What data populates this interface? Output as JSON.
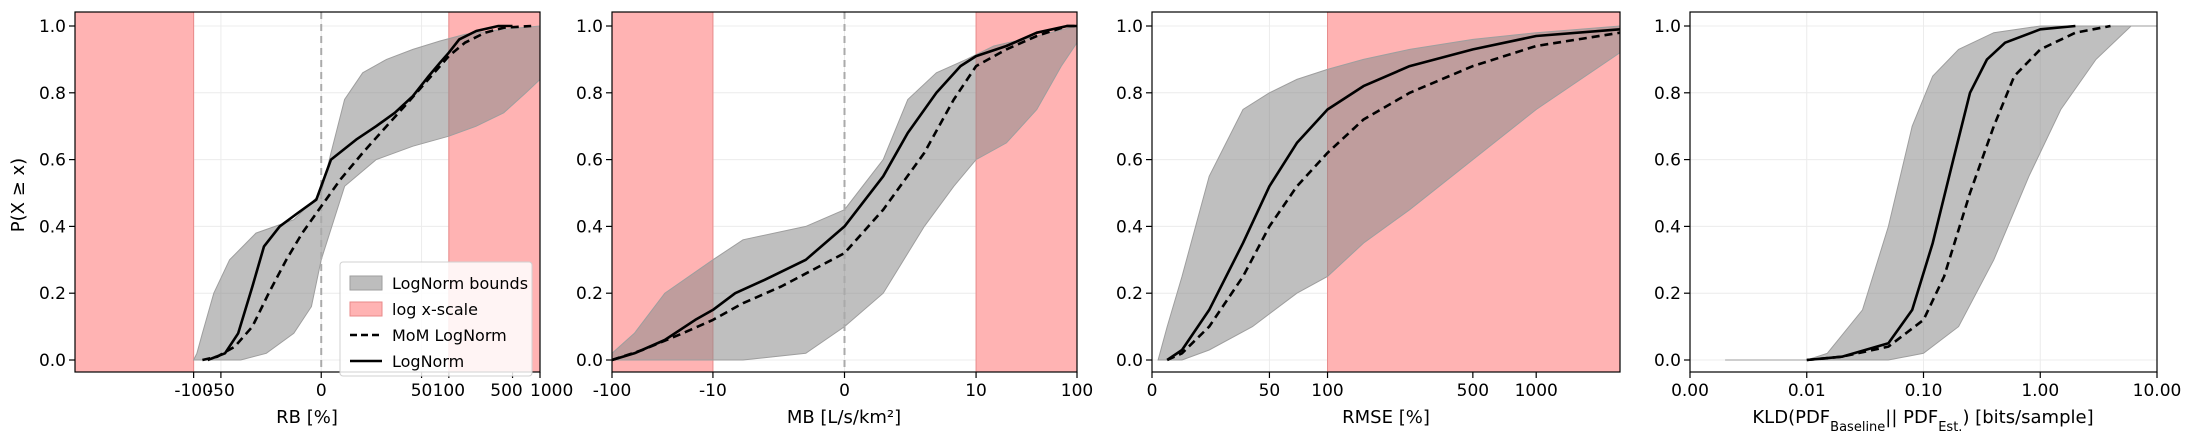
{
  "colors": {
    "bounds_fill": "#bdbdbd",
    "bounds_edge": "#9e9e9e",
    "log_fill": "#ffb3b3",
    "log_edge": "#e88a8a",
    "line": "#000000",
    "zero_line": "#aaaaaa",
    "grid": "#ececec"
  },
  "legend": {
    "bounds": "LogNorm bounds",
    "log": "log x-scale",
    "mom": "MoM LogNorm",
    "lognorm": "LogNorm"
  },
  "chart_data": [
    {
      "type": "area",
      "ylabel": "P(X ≥ x)",
      "xlabel": "RB [%]",
      "x_ticks": [
        "-100",
        "-50",
        "0",
        "50",
        "100",
        "500",
        "1000"
      ],
      "y_ticks": [
        "0.0",
        "0.2",
        "0.4",
        "0.6",
        "0.8",
        "1.0"
      ],
      "ylim": [
        0,
        1
      ],
      "log_regions": [
        [
          "left_edge",
          "-100"
        ],
        [
          "100",
          "right_edge"
        ]
      ],
      "zero_line": "0",
      "grid": true,
      "legend_position": "lower-right",
      "series": [
        {
          "role": "lognorm",
          "points": [
            [
              -70,
              0.0
            ],
            [
              -45,
              0.02
            ],
            [
              -32,
              0.08
            ],
            [
              -22,
              0.22
            ],
            [
              -16,
              0.34
            ],
            [
              -10,
              0.4
            ],
            [
              -5,
              0.44
            ],
            [
              -1,
              0.48
            ],
            [
              0,
              0.52
            ],
            [
              2,
              0.6
            ],
            [
              8,
              0.66
            ],
            [
              15,
              0.7
            ],
            [
              25,
              0.74
            ],
            [
              40,
              0.79
            ],
            [
              60,
              0.85
            ],
            [
              80,
              0.89
            ],
            [
              100,
              0.92
            ],
            [
              130,
              0.96
            ],
            [
              200,
              0.985
            ],
            [
              350,
              1.0
            ],
            [
              500,
              1.0
            ]
          ]
        },
        {
          "role": "mom",
          "points": [
            [
              -80,
              0.0
            ],
            [
              -55,
              0.01
            ],
            [
              -35,
              0.04
            ],
            [
              -22,
              0.1
            ],
            [
              -14,
              0.2
            ],
            [
              -8,
              0.3
            ],
            [
              -4,
              0.38
            ],
            [
              0,
              0.46
            ],
            [
              4,
              0.54
            ],
            [
              10,
              0.62
            ],
            [
              20,
              0.7
            ],
            [
              35,
              0.77
            ],
            [
              55,
              0.83
            ],
            [
              80,
              0.88
            ],
            [
              100,
              0.91
            ],
            [
              150,
              0.95
            ],
            [
              250,
              0.98
            ],
            [
              400,
              0.995
            ],
            [
              800,
              1.0
            ]
          ]
        },
        {
          "role": "bound_upper",
          "points": [
            [
              -100,
              0.0
            ],
            [
              -92,
              0.02
            ],
            [
              -80,
              0.08
            ],
            [
              -60,
              0.2
            ],
            [
              -40,
              0.3
            ],
            [
              -20,
              0.38
            ],
            [
              -6,
              0.42
            ],
            [
              0,
              0.5
            ],
            [
              2,
              0.62
            ],
            [
              5,
              0.78
            ],
            [
              10,
              0.86
            ],
            [
              20,
              0.9
            ],
            [
              40,
              0.93
            ],
            [
              80,
              0.955
            ],
            [
              150,
              0.975
            ],
            [
              400,
              0.99
            ],
            [
              1000,
              1.0
            ]
          ]
        },
        {
          "role": "bound_lower",
          "points": [
            [
              -100,
              0.0
            ],
            [
              -30,
              0.0
            ],
            [
              -15,
              0.02
            ],
            [
              -6,
              0.08
            ],
            [
              -2,
              0.16
            ],
            [
              0,
              0.3
            ],
            [
              5,
              0.52
            ],
            [
              15,
              0.6
            ],
            [
              40,
              0.64
            ],
            [
              100,
              0.67
            ],
            [
              200,
              0.7
            ],
            [
              400,
              0.74
            ],
            [
              700,
              0.8
            ],
            [
              1000,
              0.84
            ]
          ]
        }
      ]
    },
    {
      "type": "area",
      "xlabel": "MB [L/s/km²]",
      "x_ticks": [
        "-100",
        "-10",
        "0",
        "10",
        "100"
      ],
      "y_ticks": [
        "0.0",
        "0.2",
        "0.4",
        "0.6",
        "0.8",
        "1.0"
      ],
      "ylim": [
        0,
        1
      ],
      "log_regions": [
        [
          "-100",
          "-10"
        ],
        [
          "10",
          "100"
        ]
      ],
      "zero_line": "0",
      "grid": true,
      "series": [
        {
          "role": "lognorm",
          "points": [
            [
              -100,
              0.0
            ],
            [
              -60,
              0.02
            ],
            [
              -30,
              0.06
            ],
            [
              -15,
              0.12
            ],
            [
              -10,
              0.15
            ],
            [
              -6,
              0.2
            ],
            [
              -3,
              0.24
            ],
            [
              -1,
              0.3
            ],
            [
              0,
              0.4
            ],
            [
              1,
              0.55
            ],
            [
              2,
              0.68
            ],
            [
              4,
              0.8
            ],
            [
              7,
              0.88
            ],
            [
              10,
              0.91
            ],
            [
              20,
              0.94
            ],
            [
              40,
              0.98
            ],
            [
              80,
              1.0
            ],
            [
              100,
              1.0
            ]
          ]
        },
        {
          "role": "mom",
          "points": [
            [
              -100,
              0.0
            ],
            [
              -50,
              0.03
            ],
            [
              -20,
              0.08
            ],
            [
              -10,
              0.12
            ],
            [
              -5,
              0.17
            ],
            [
              -2,
              0.22
            ],
            [
              0,
              0.32
            ],
            [
              1,
              0.45
            ],
            [
              3,
              0.62
            ],
            [
              6,
              0.78
            ],
            [
              10,
              0.88
            ],
            [
              20,
              0.93
            ],
            [
              40,
              0.97
            ],
            [
              80,
              1.0
            ],
            [
              100,
              1.0
            ]
          ]
        },
        {
          "role": "bound_upper",
          "points": [
            [
              -100,
              0.02
            ],
            [
              -60,
              0.08
            ],
            [
              -30,
              0.2
            ],
            [
              -10,
              0.3
            ],
            [
              -5,
              0.36
            ],
            [
              -1,
              0.4
            ],
            [
              0,
              0.45
            ],
            [
              1,
              0.6
            ],
            [
              2,
              0.78
            ],
            [
              4,
              0.86
            ],
            [
              8,
              0.9
            ],
            [
              15,
              0.94
            ],
            [
              40,
              0.97
            ],
            [
              100,
              1.0
            ]
          ]
        },
        {
          "role": "bound_lower",
          "points": [
            [
              -100,
              0.0
            ],
            [
              -5,
              0.0
            ],
            [
              -1,
              0.02
            ],
            [
              0,
              0.1
            ],
            [
              1,
              0.2
            ],
            [
              3,
              0.4
            ],
            [
              6,
              0.52
            ],
            [
              10,
              0.6
            ],
            [
              20,
              0.65
            ],
            [
              40,
              0.75
            ],
            [
              70,
              0.88
            ],
            [
              100,
              0.95
            ]
          ]
        }
      ]
    },
    {
      "type": "area",
      "xlabel": "RMSE [%]",
      "x_ticks": [
        "0",
        "50",
        "100",
        "500",
        "1000"
      ],
      "y_ticks": [
        "0.0",
        "0.2",
        "0.4",
        "0.6",
        "0.8",
        "1.0"
      ],
      "ylim": [
        0,
        1
      ],
      "log_regions": [
        [
          "100",
          "right_edge"
        ]
      ],
      "grid": true,
      "series": [
        {
          "role": "lognorm",
          "points": [
            [
              5,
              0.0
            ],
            [
              10,
              0.03
            ],
            [
              20,
              0.15
            ],
            [
              35,
              0.35
            ],
            [
              50,
              0.52
            ],
            [
              70,
              0.65
            ],
            [
              100,
              0.75
            ],
            [
              150,
              0.82
            ],
            [
              250,
              0.88
            ],
            [
              500,
              0.93
            ],
            [
              1000,
              0.97
            ],
            [
              2500,
              0.99
            ]
          ]
        },
        {
          "role": "mom",
          "points": [
            [
              5,
              0.0
            ],
            [
              10,
              0.02
            ],
            [
              20,
              0.1
            ],
            [
              35,
              0.25
            ],
            [
              50,
              0.4
            ],
            [
              70,
              0.52
            ],
            [
              100,
              0.62
            ],
            [
              150,
              0.72
            ],
            [
              250,
              0.8
            ],
            [
              500,
              0.88
            ],
            [
              1000,
              0.94
            ],
            [
              2500,
              0.98
            ]
          ]
        },
        {
          "role": "bound_upper",
          "points": [
            [
              2,
              0.0
            ],
            [
              5,
              0.1
            ],
            [
              10,
              0.25
            ],
            [
              20,
              0.55
            ],
            [
              35,
              0.75
            ],
            [
              50,
              0.8
            ],
            [
              70,
              0.84
            ],
            [
              100,
              0.87
            ],
            [
              150,
              0.9
            ],
            [
              250,
              0.93
            ],
            [
              500,
              0.96
            ],
            [
              1000,
              0.98
            ],
            [
              2500,
              1.0
            ]
          ]
        },
        {
          "role": "bound_lower",
          "points": [
            [
              5,
              0.0
            ],
            [
              10,
              0.0
            ],
            [
              20,
              0.03
            ],
            [
              40,
              0.1
            ],
            [
              70,
              0.2
            ],
            [
              100,
              0.25
            ],
            [
              150,
              0.35
            ],
            [
              250,
              0.45
            ],
            [
              500,
              0.6
            ],
            [
              1000,
              0.75
            ],
            [
              2500,
              0.92
            ]
          ]
        }
      ]
    },
    {
      "type": "area",
      "xlabel": "KLD(PDF",
      "xlabel_sub1": "Baseline",
      "xlabel_mid": "|| PDF",
      "xlabel_sub2": "Est.",
      "xlabel_end": ") [bits/sample]",
      "x_ticks": [
        "0.00",
        "0.01",
        "0.10",
        "1.00",
        "10.00"
      ],
      "y_ticks": [
        "0.0",
        "0.2",
        "0.4",
        "0.6",
        "0.8",
        "1.0"
      ],
      "ylim": [
        0,
        1
      ],
      "grid": true,
      "series": [
        {
          "role": "lognorm",
          "points": [
            [
              0.01,
              0.0
            ],
            [
              0.02,
              0.01
            ],
            [
              0.05,
              0.05
            ],
            [
              0.08,
              0.15
            ],
            [
              0.12,
              0.35
            ],
            [
              0.18,
              0.6
            ],
            [
              0.25,
              0.8
            ],
            [
              0.35,
              0.9
            ],
            [
              0.5,
              0.95
            ],
            [
              1.0,
              0.99
            ],
            [
              2.0,
              1.0
            ]
          ]
        },
        {
          "role": "mom",
          "points": [
            [
              0.01,
              0.0
            ],
            [
              0.02,
              0.01
            ],
            [
              0.05,
              0.04
            ],
            [
              0.1,
              0.12
            ],
            [
              0.15,
              0.25
            ],
            [
              0.25,
              0.5
            ],
            [
              0.4,
              0.7
            ],
            [
              0.6,
              0.85
            ],
            [
              1.0,
              0.93
            ],
            [
              2.0,
              0.98
            ],
            [
              4.0,
              1.0
            ]
          ]
        },
        {
          "role": "bound_upper",
          "points": [
            [
              0.01,
              0.0
            ],
            [
              0.015,
              0.02
            ],
            [
              0.03,
              0.15
            ],
            [
              0.05,
              0.4
            ],
            [
              0.08,
              0.7
            ],
            [
              0.12,
              0.85
            ],
            [
              0.2,
              0.93
            ],
            [
              0.4,
              0.98
            ],
            [
              1.0,
              1.0
            ],
            [
              2.0,
              1.0
            ]
          ]
        },
        {
          "role": "bound_lower",
          "points": [
            [
              0.002,
              0.0
            ],
            [
              0.05,
              0.0
            ],
            [
              0.1,
              0.02
            ],
            [
              0.2,
              0.1
            ],
            [
              0.4,
              0.3
            ],
            [
              0.8,
              0.55
            ],
            [
              1.5,
              0.75
            ],
            [
              3.0,
              0.9
            ],
            [
              6.0,
              1.0
            ],
            [
              10,
              1.0
            ]
          ]
        }
      ]
    }
  ]
}
